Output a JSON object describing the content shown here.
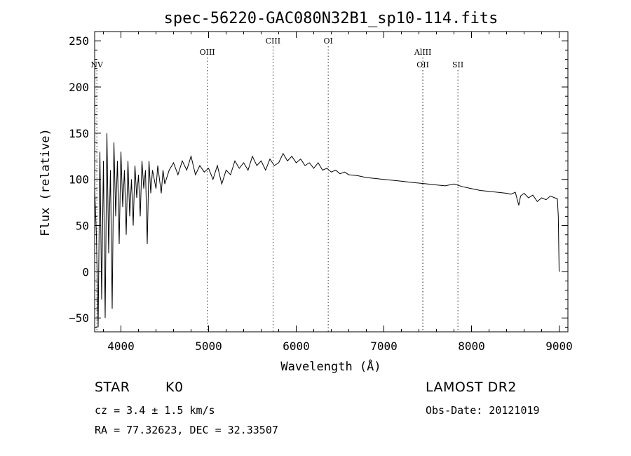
{
  "chart_data": {
    "type": "line",
    "title": "spec-56220-GAC080N32B1_sp10-114.fits",
    "xlabel": "Wavelength (Å)",
    "ylabel": "Flux (relative)",
    "xlim": [
      3700,
      9100
    ],
    "ylim": [
      -65,
      260
    ],
    "xticks": [
      4000,
      5000,
      6000,
      7000,
      8000,
      9000
    ],
    "yticks": [
      -50,
      0,
      50,
      100,
      150,
      200,
      250
    ],
    "grid": false,
    "series": [
      {
        "name": "flux",
        "x": [
          3700,
          3720,
          3740,
          3760,
          3780,
          3800,
          3820,
          3840,
          3860,
          3880,
          3900,
          3920,
          3940,
          3960,
          3980,
          4000,
          4020,
          4040,
          4060,
          4080,
          4100,
          4120,
          4140,
          4160,
          4180,
          4200,
          4220,
          4240,
          4260,
          4280,
          4300,
          4320,
          4340,
          4360,
          4380,
          4400,
          4420,
          4440,
          4460,
          4480,
          4500,
          4550,
          4600,
          4650,
          4700,
          4750,
          4800,
          4850,
          4900,
          4950,
          5000,
          5050,
          5100,
          5150,
          5200,
          5250,
          5300,
          5350,
          5400,
          5450,
          5500,
          5550,
          5600,
          5650,
          5700,
          5750,
          5800,
          5850,
          5900,
          5950,
          6000,
          6050,
          6100,
          6150,
          6200,
          6250,
          6300,
          6350,
          6400,
          6450,
          6500,
          6550,
          6600,
          6700,
          6800,
          6900,
          7000,
          7100,
          7200,
          7300,
          7400,
          7500,
          7600,
          7700,
          7800,
          7900,
          8000,
          8100,
          8200,
          8300,
          8400,
          8450,
          8500,
          8540,
          8560,
          8600,
          8650,
          8700,
          8750,
          8800,
          8850,
          8900,
          8950,
          8980,
          8990,
          9000
        ],
        "y": [
          90,
          40,
          -60,
          130,
          -30,
          120,
          -50,
          150,
          20,
          110,
          -40,
          140,
          60,
          120,
          30,
          130,
          70,
          110,
          40,
          120,
          60,
          100,
          50,
          115,
          80,
          105,
          60,
          120,
          90,
          110,
          30,
          120,
          85,
          110,
          100,
          90,
          115,
          100,
          85,
          110,
          95,
          110,
          118,
          105,
          120,
          110,
          125,
          105,
          115,
          108,
          112,
          100,
          115,
          95,
          110,
          105,
          120,
          112,
          118,
          110,
          125,
          115,
          120,
          110,
          122,
          115,
          118,
          128,
          120,
          125,
          118,
          122,
          115,
          118,
          112,
          118,
          110,
          112,
          108,
          110,
          106,
          108,
          105,
          104,
          102,
          101,
          100,
          99,
          98,
          97,
          96,
          95,
          94,
          93,
          95,
          92,
          90,
          88,
          87,
          86,
          85,
          84,
          86,
          72,
          82,
          85,
          80,
          83,
          76,
          80,
          78,
          82,
          80,
          79,
          60,
          0
        ]
      }
    ],
    "lines": [
      {
        "label": "NV",
        "x": 3725,
        "row": "lower"
      },
      {
        "label": "OIII",
        "x": 4985,
        "row": "middle"
      },
      {
        "label": "CIII",
        "x": 5735,
        "row": "upper"
      },
      {
        "label": "OI",
        "x": 6365,
        "row": "upper"
      },
      {
        "label": "AlIII",
        "x": 7445,
        "row": "middle"
      },
      {
        "label": "OII",
        "x": 7445,
        "row": "lower"
      },
      {
        "label": "SII",
        "x": 7845,
        "row": "lower"
      }
    ]
  },
  "info": {
    "object_class": "STAR",
    "subclass": "K0",
    "survey": "LAMOST DR2",
    "cz": "cz = 3.4 ± 1.5 km/s",
    "obs_date": "Obs-Date: 20121019",
    "coords": "RA =  77.32623, DEC =  32.33507"
  }
}
